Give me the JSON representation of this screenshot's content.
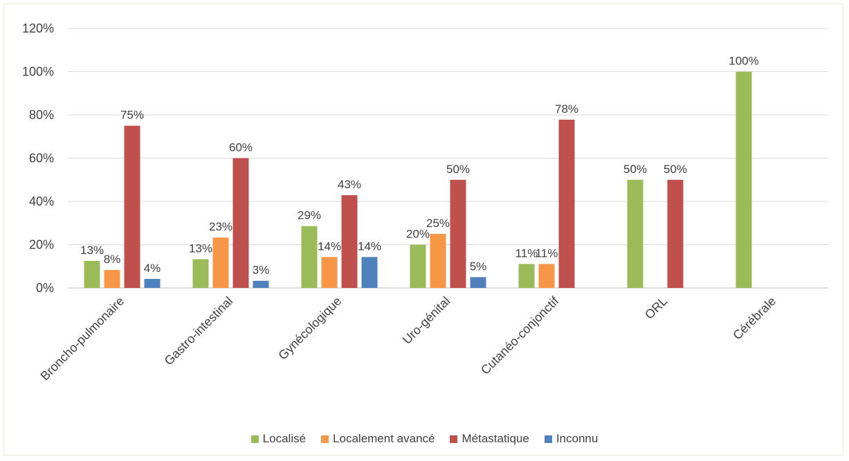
{
  "chart_data": {
    "type": "bar",
    "categories": [
      "Broncho-pulmonaire",
      "Gastro-intestinal",
      "Gynécologique",
      "Uro-génital",
      "Cutanéo-conjonctif",
      "ORL",
      "Cérébrale"
    ],
    "series": [
      {
        "name": "Localisé",
        "color": "#9bbb59",
        "values": [
          12.5,
          13.3,
          28.6,
          20,
          11.1,
          50,
          100
        ],
        "labels": [
          "13%",
          "13%",
          "29%",
          "20%",
          "11%",
          "50%",
          "100%"
        ]
      },
      {
        "name": "Localement avancé",
        "color": "#f79646",
        "values": [
          8.3,
          23.3,
          14.3,
          25,
          11.1,
          null,
          null
        ],
        "labels": [
          "8%",
          "23%",
          "14%",
          "25%",
          "11%",
          "",
          ""
        ]
      },
      {
        "name": "Métastatique",
        "color": "#c0504d",
        "values": [
          75,
          60,
          42.9,
          50,
          77.8,
          50,
          null
        ],
        "labels": [
          "75%",
          "60%",
          "43%",
          "50%",
          "78%",
          "50%",
          ""
        ]
      },
      {
        "name": "Inconnu",
        "color": "#4f81bd",
        "values": [
          4.2,
          3.3,
          14.3,
          5,
          null,
          null,
          null
        ],
        "labels": [
          "4%",
          "3%",
          "14%",
          "5%",
          "",
          "",
          ""
        ]
      }
    ],
    "ylim": [
      0,
      120
    ],
    "yticks": [
      "0%",
      "20%",
      "40%",
      "60%",
      "80%",
      "100%",
      "120%"
    ],
    "grid": true,
    "legend_position": "bottom"
  }
}
